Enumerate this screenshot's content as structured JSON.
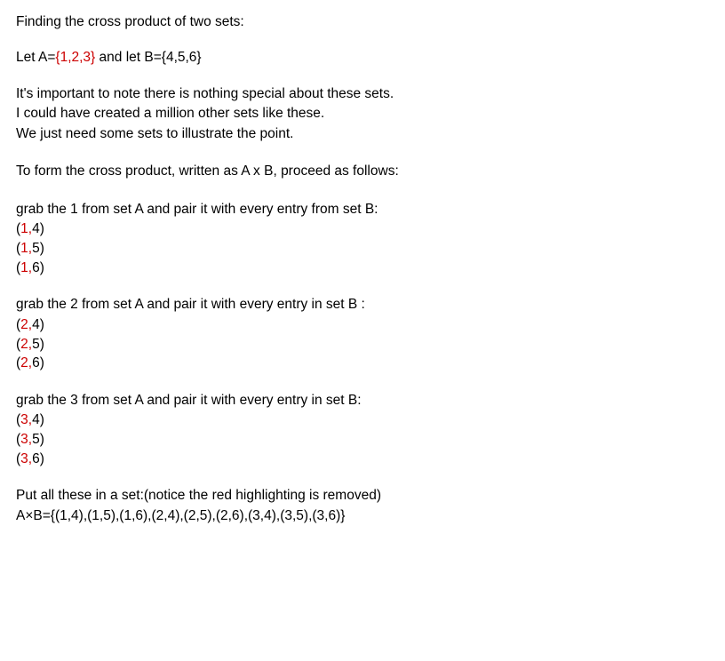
{
  "colors": {
    "highlight": "#cc0000",
    "text": "#000000",
    "background": "#ffffff"
  },
  "title": "Finding the cross product of two sets:",
  "defs": {
    "prefixA": "Let A=",
    "setA_red": "{1,2,3}",
    "mid": " and let B=",
    "setB": "{4,5,6}"
  },
  "note": {
    "l1": "It's important to note there is nothing special about these sets.",
    "l2": "I could have created a million other sets like these.",
    "l3": "We just need some sets to illustrate the point."
  },
  "instruction": "To form the cross product, written as A x B, proceed as follows:",
  "step1": {
    "heading": "grab the 1 from set A and pair it with every entry from set B:",
    "pairs": [
      {
        "open": "(",
        "a": "1,",
        "b": "4)",
        "a_red": true
      },
      {
        "open": "(",
        "a": "1,",
        "b": "5)",
        "a_red": true
      },
      {
        "open": "(",
        "a": "1,",
        "b": "6)",
        "a_red": true
      }
    ]
  },
  "step2": {
    "heading": "grab the 2 from set A and pair it with every entry in set B :",
    "pairs": [
      {
        "open": "(",
        "a": "2,",
        "b": "4)",
        "a_red": true
      },
      {
        "open": "(",
        "a": "2,",
        "b": "5)",
        "a_red": true
      },
      {
        "open": "(",
        "a": "2,",
        "b": "6)",
        "a_red": true
      }
    ]
  },
  "step3": {
    "heading": "grab the 3 from set A and pair it with every entry in set B:",
    "pairs": [
      {
        "open": "(",
        "a": "3,",
        "b": "4)",
        "a_red": true
      },
      {
        "open": "(",
        "a": "3,",
        "b": "5)",
        "a_red": true
      },
      {
        "open": "(",
        "a": "3,",
        "b": "6)",
        "a_red": true
      }
    ]
  },
  "result": {
    "l1": "Put all these in a set:(notice the red highlighting is removed)",
    "l2": "A×B={(1,4),(1,5),(1,6),(2,4),(2,5),(2,6),(3,4),(3,5),(3,6)}"
  }
}
